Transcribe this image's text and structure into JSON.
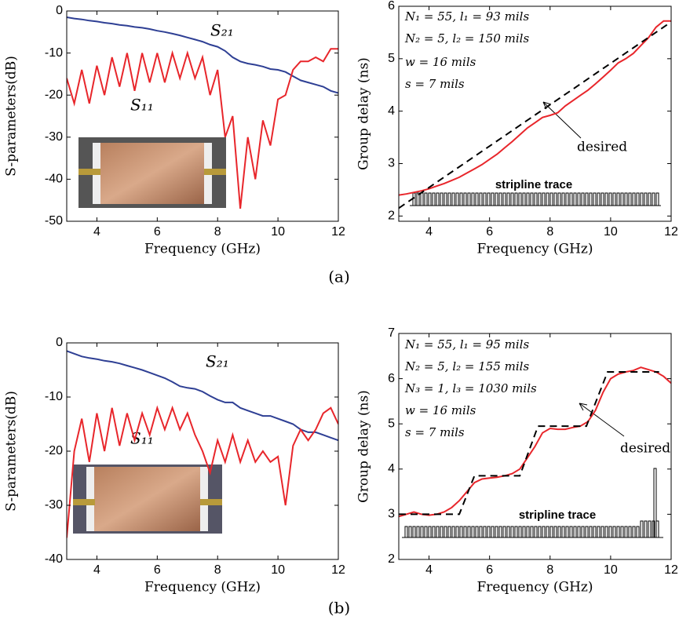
{
  "chart_data": [
    {
      "type": "line",
      "xlabel": "Frequency (GHz)",
      "ylabel": "S-parameters(dB)",
      "xlim": [
        3,
        12
      ],
      "ylim": [
        -50,
        0
      ],
      "xticks": [
        4,
        6,
        8,
        10,
        12
      ],
      "yticks": [
        0,
        -10,
        -20,
        -30,
        -40,
        -50
      ],
      "x": [
        3,
        3.25,
        3.5,
        3.75,
        4,
        4.25,
        4.5,
        4.75,
        5,
        5.25,
        5.5,
        5.75,
        6,
        6.25,
        6.5,
        6.75,
        7,
        7.25,
        7.5,
        7.75,
        8,
        8.25,
        8.5,
        8.75,
        9,
        9.25,
        9.5,
        9.75,
        10,
        10.25,
        10.5,
        10.75,
        11,
        11.25,
        11.5,
        11.75,
        12
      ],
      "series": [
        {
          "name": "S₂₁",
          "color": "#2e3f94",
          "values": [
            -1.5,
            -1.8,
            -2,
            -2.3,
            -2.5,
            -2.8,
            -3,
            -3.3,
            -3.5,
            -3.8,
            -4,
            -4.3,
            -4.7,
            -5,
            -5.4,
            -5.8,
            -6.3,
            -6.8,
            -7.3,
            -8,
            -8.5,
            -9.5,
            -11,
            -12,
            -12.5,
            -12.8,
            -13.2,
            -13.8,
            -14,
            -14.5,
            -15.5,
            -16.5,
            -17,
            -17.5,
            -18,
            -19,
            -19.5
          ]
        },
        {
          "name": "S₁₁",
          "color": "#e8262b",
          "values": [
            -16,
            -22,
            -14,
            -22,
            -13,
            -20,
            -11,
            -18,
            -10,
            -19,
            -10,
            -17,
            -10,
            -17,
            -10,
            -16,
            -10,
            -16,
            -11,
            -20,
            -14,
            -30,
            -25,
            -47,
            -30,
            -40,
            -26,
            -32,
            -21,
            -20,
            -14,
            -12,
            -12,
            -11,
            -12,
            -9,
            -9
          ]
        }
      ]
    },
    {
      "type": "line",
      "xlabel": "Frequency (GHz)",
      "ylabel": "Group delay (ns)",
      "xlim": [
        3,
        12
      ],
      "ylim": [
        1.9,
        6
      ],
      "xticks": [
        4,
        6,
        8,
        10,
        12
      ],
      "yticks": [
        2,
        3,
        4,
        5,
        6
      ],
      "x": [
        3,
        3.25,
        3.5,
        3.75,
        4,
        4.25,
        4.5,
        4.75,
        5,
        5.25,
        5.5,
        5.75,
        6,
        6.25,
        6.5,
        6.75,
        7,
        7.25,
        7.5,
        7.75,
        8,
        8.25,
        8.5,
        8.75,
        9,
        9.25,
        9.5,
        9.75,
        10,
        10.25,
        10.5,
        10.75,
        11,
        11.25,
        11.5,
        11.75,
        12
      ],
      "annotations": [
        "N₁ = 55, l₁ = 93 mils",
        "N₂ = 5, l₂ = 150 mils",
        "w = 16 mils",
        "s = 7 mils"
      ],
      "inset_label": "stripline trace",
      "series": [
        {
          "color": "#e8262b",
          "values": [
            2.4,
            2.42,
            2.45,
            2.48,
            2.52,
            2.57,
            2.62,
            2.68,
            2.74,
            2.82,
            2.9,
            2.98,
            3.08,
            3.18,
            3.3,
            3.42,
            3.55,
            3.68,
            3.78,
            3.88,
            3.92,
            3.97,
            4.1,
            4.2,
            4.3,
            4.4,
            4.52,
            4.65,
            4.78,
            4.92,
            5,
            5.1,
            5.25,
            5.4,
            5.6,
            5.72,
            5.72
          ]
        },
        {
          "name": "desired",
          "color": "#000000",
          "dashed": true,
          "x": [
            3,
            12
          ],
          "values": [
            2.15,
            5.7
          ]
        }
      ]
    },
    {
      "type": "line",
      "xlabel": "Frequency (GHz)",
      "ylabel": "S-parameters(dB)",
      "xlim": [
        3,
        12
      ],
      "ylim": [
        -40,
        0
      ],
      "xticks": [
        4,
        6,
        8,
        10,
        12
      ],
      "yticks": [
        0,
        -10,
        -20,
        -30,
        -40
      ],
      "x": [
        3,
        3.25,
        3.5,
        3.75,
        4,
        4.25,
        4.5,
        4.75,
        5,
        5.25,
        5.5,
        5.75,
        6,
        6.25,
        6.5,
        6.75,
        7,
        7.25,
        7.5,
        7.75,
        8,
        8.25,
        8.5,
        8.75,
        9,
        9.25,
        9.5,
        9.75,
        10,
        10.25,
        10.5,
        10.75,
        11,
        11.25,
        11.5,
        11.75,
        12
      ],
      "series": [
        {
          "name": "S₂₁",
          "color": "#2e3f94",
          "values": [
            -1.5,
            -2,
            -2.5,
            -2.8,
            -3,
            -3.3,
            -3.5,
            -3.8,
            -4.2,
            -4.6,
            -5,
            -5.5,
            -6,
            -6.5,
            -7.2,
            -8,
            -8.3,
            -8.5,
            -9,
            -9.8,
            -10.5,
            -11,
            -11,
            -12,
            -12.5,
            -13,
            -13.5,
            -13.5,
            -14,
            -14.5,
            -15,
            -16,
            -16.5,
            -16.5,
            -17,
            -17.5,
            -18
          ]
        },
        {
          "name": "S₁₁",
          "color": "#e8262b",
          "values": [
            -36,
            -20,
            -14,
            -22,
            -13,
            -20,
            -12,
            -19,
            -13,
            -18,
            -13,
            -17,
            -12,
            -16,
            -12,
            -16,
            -13,
            -17,
            -20,
            -24,
            -18,
            -22,
            -17,
            -22,
            -18,
            -22,
            -20,
            -22,
            -21,
            -30,
            -19,
            -16,
            -18,
            -16,
            -13,
            -12,
            -15
          ]
        }
      ]
    },
    {
      "type": "line",
      "xlabel": "Frequency (GHz)",
      "ylabel": "Group delay (ns)",
      "xlim": [
        3,
        12
      ],
      "ylim": [
        2,
        7
      ],
      "xticks": [
        4,
        6,
        8,
        10,
        12
      ],
      "yticks": [
        2,
        3,
        4,
        5,
        6,
        7
      ],
      "x": [
        3,
        3.25,
        3.5,
        3.75,
        4,
        4.25,
        4.5,
        4.75,
        5,
        5.25,
        5.5,
        5.75,
        6,
        6.25,
        6.5,
        6.75,
        7,
        7.25,
        7.5,
        7.75,
        8,
        8.25,
        8.5,
        8.75,
        9,
        9.25,
        9.5,
        9.75,
        10,
        10.25,
        10.5,
        10.75,
        11,
        11.25,
        11.5,
        11.75,
        12
      ],
      "annotations": [
        "N₁ = 55, l₁ = 95 mils",
        "N₂ = 5, l₂ = 155 mils",
        "N₃ = 1, l₃ = 1030 mils",
        "w = 16 mils",
        "s = 7 mils"
      ],
      "inset_label": "stripline trace",
      "series": [
        {
          "color": "#e8262b",
          "values": [
            2.95,
            3,
            3.05,
            3,
            2.98,
            3,
            3.05,
            3.15,
            3.3,
            3.5,
            3.7,
            3.78,
            3.8,
            3.82,
            3.85,
            3.9,
            4,
            4.25,
            4.5,
            4.8,
            4.9,
            4.88,
            4.88,
            4.92,
            4.95,
            5.05,
            5.3,
            5.7,
            6,
            6.1,
            6.15,
            6.18,
            6.25,
            6.2,
            6.15,
            6.05,
            5.9
          ]
        },
        {
          "name": "desired",
          "color": "#000000",
          "dashed": true,
          "x": [
            3,
            5,
            5.5,
            7,
            7.6,
            9.2,
            9.9,
            11.6
          ],
          "values": [
            3,
            3,
            3.85,
            3.85,
            4.95,
            4.95,
            6.15,
            6.15
          ]
        }
      ]
    }
  ],
  "captions": [
    "(a)",
    "(b)"
  ]
}
